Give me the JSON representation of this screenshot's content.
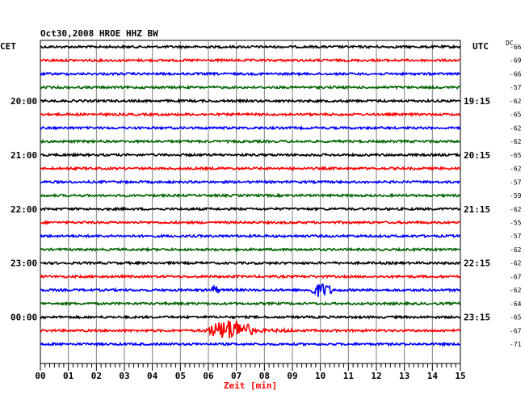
{
  "chart_data": {
    "type": "line",
    "title": "Oct30,2008   HROE HHZ BW",
    "left_axis_label": "CET",
    "right_axis_label": "UTC",
    "dc_label": "DC",
    "xlabel": "Zeit [min]",
    "xlim": [
      0,
      15
    ],
    "x_ticks": [
      "00",
      "01",
      "02",
      "03",
      "04",
      "05",
      "06",
      "07",
      "08",
      "09",
      "10",
      "11",
      "12",
      "13",
      "14",
      "15"
    ],
    "left_time_labels": [
      "20:00",
      "21:00",
      "22:00",
      "23:00",
      "00:00"
    ],
    "right_time_labels": [
      "19:15",
      "20:15",
      "21:15",
      "22:15",
      "23:15"
    ],
    "hour_label_traces": [
      4,
      8,
      12,
      16,
      20
    ],
    "trace_colors": [
      "#000000",
      "#ff0000",
      "#0000ff",
      "#006400"
    ],
    "dc_values": [
      "-66",
      "-69",
      "-66",
      "-57",
      "-62",
      "-65",
      "-62",
      "-62",
      "-65",
      "-62",
      "-57",
      "-59",
      "-62",
      "-55",
      "-57",
      "-62",
      "-62",
      "-67",
      "-62",
      "-64",
      "-65",
      "-67",
      "-71"
    ],
    "events": [
      {
        "trace": 18,
        "start_min": 6.0,
        "end_min": 6.7,
        "amplitude": 6
      },
      {
        "trace": 18,
        "start_min": 9.5,
        "end_min": 11.2,
        "amplitude": 9
      },
      {
        "trace": 21,
        "start_min": 5.8,
        "end_min": 9.0,
        "amplitude": 14
      }
    ],
    "grid": true
  }
}
